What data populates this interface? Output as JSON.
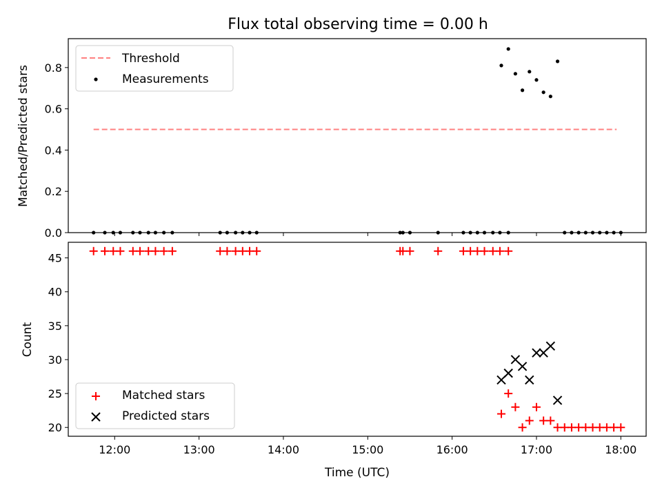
{
  "chart_data": [
    {
      "type": "scatter",
      "title": "Flux total observing time = 0.00 h",
      "xlabel": "",
      "ylabel": "Matched/Predicted stars",
      "xlim": [
        "11:27",
        "18:18"
      ],
      "ylim": [
        0,
        0.94
      ],
      "x_ticks": [
        "12:00",
        "13:00",
        "14:00",
        "15:00",
        "16:00",
        "17:00",
        "18:00"
      ],
      "y_ticks": [
        "0.0",
        "0.2",
        "0.4",
        "0.6",
        "0.8"
      ],
      "legend_position": "upper-left",
      "grid": false,
      "threshold": {
        "label": "Threshold",
        "value": 0.5,
        "x_range": [
          "11:45",
          "17:57"
        ],
        "color": "#ff8080",
        "style": "dashed"
      },
      "series": [
        {
          "name": "Measurements",
          "color": "#000000",
          "marker": "dot",
          "x": [
            "11:45",
            "11:53",
            "11:59",
            "12:04",
            "12:13",
            "12:18",
            "12:24",
            "12:29",
            "12:35",
            "12:41",
            "13:15",
            "13:20",
            "13:26",
            "13:31",
            "13:36",
            "13:41",
            "15:23",
            "15:25",
            "15:30",
            "15:50",
            "16:08",
            "16:13",
            "16:18",
            "16:23",
            "16:29",
            "16:34",
            "16:40",
            "16:35",
            "16:40",
            "16:45",
            "16:50",
            "16:55",
            "17:00",
            "17:05",
            "17:10",
            "17:15",
            "17:20",
            "17:25",
            "17:30",
            "17:35",
            "17:40",
            "17:45",
            "17:50",
            "17:55",
            "18:00"
          ],
          "y": [
            0,
            0,
            0,
            0,
            0,
            0,
            0,
            0,
            0,
            0,
            0,
            0,
            0,
            0,
            0,
            0,
            0,
            0,
            0,
            0,
            0,
            0,
            0,
            0,
            0,
            0,
            0,
            0.81,
            0.89,
            0.77,
            0.69,
            0.78,
            0.74,
            0.68,
            0.66,
            0.83,
            0,
            0,
            0,
            0,
            0,
            0,
            0,
            0,
            0
          ]
        }
      ]
    },
    {
      "type": "scatter",
      "title": "",
      "xlabel": "Time (UTC)",
      "ylabel": "Count",
      "xlim": [
        "11:27",
        "18:18"
      ],
      "ylim": [
        18.7,
        47.3
      ],
      "x_ticks": [
        "12:00",
        "13:00",
        "14:00",
        "15:00",
        "16:00",
        "17:00",
        "18:00"
      ],
      "y_ticks": [
        "20",
        "25",
        "30",
        "35",
        "40",
        "45"
      ],
      "legend_position": "lower-left",
      "grid": false,
      "series": [
        {
          "name": "Matched stars",
          "color": "#ff0000",
          "marker": "plus",
          "x": [
            "11:45",
            "11:53",
            "11:59",
            "12:04",
            "12:13",
            "12:18",
            "12:24",
            "12:29",
            "12:35",
            "12:41",
            "13:15",
            "13:20",
            "13:26",
            "13:31",
            "13:36",
            "13:41",
            "15:23",
            "15:25",
            "15:30",
            "15:50",
            "16:08",
            "16:13",
            "16:18",
            "16:23",
            "16:29",
            "16:34",
            "16:40",
            "16:35",
            "16:40",
            "16:45",
            "16:50",
            "16:55",
            "17:00",
            "17:05",
            "17:10",
            "17:15",
            "17:20",
            "17:25",
            "17:30",
            "17:35",
            "17:40",
            "17:45",
            "17:50",
            "17:55",
            "18:00"
          ],
          "y": [
            46,
            46,
            46,
            46,
            46,
            46,
            46,
            46,
            46,
            46,
            46,
            46,
            46,
            46,
            46,
            46,
            46,
            46,
            46,
            46,
            46,
            46,
            46,
            46,
            46,
            46,
            46,
            22,
            25,
            23,
            20,
            21,
            23,
            21,
            21,
            20,
            20,
            20,
            20,
            20,
            20,
            20,
            20,
            20,
            20
          ]
        },
        {
          "name": "Predicted stars",
          "color": "#000000",
          "marker": "x",
          "x": [
            "16:35",
            "16:40",
            "16:45",
            "16:50",
            "16:55",
            "17:00",
            "17:05",
            "17:10",
            "17:15"
          ],
          "y": [
            27,
            28,
            30,
            29,
            27,
            31,
            31,
            32,
            24
          ]
        }
      ]
    }
  ]
}
